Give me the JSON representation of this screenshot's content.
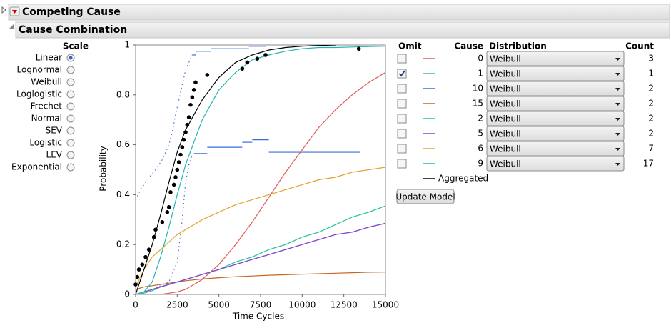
{
  "header": {
    "title": "Competing Cause",
    "subtitle": "Cause Combination"
  },
  "scale": {
    "title": "Scale",
    "options": [
      "Linear",
      "Lognormal",
      "Weibull",
      "Loglogistic",
      "Frechet",
      "Normal",
      "SEV",
      "Logistic",
      "LEV",
      "Exponential"
    ],
    "selected": 0
  },
  "cause_table": {
    "headers": [
      "Omit",
      "Cause",
      "Distribution",
      "Count"
    ],
    "omit": [
      false,
      true,
      false,
      false,
      false,
      false,
      false,
      false
    ],
    "distribution": [
      "Weibull",
      "Weibull",
      "Weibull",
      "Weibull",
      "Weibull",
      "Weibull",
      "Weibull",
      "Weibull"
    ],
    "count": [
      3,
      1,
      2,
      2,
      2,
      2,
      7,
      17
    ]
  },
  "update_button": "Update Model",
  "chart_data": {
    "type": "line",
    "xlabel": "Time Cycles",
    "ylabel": "Probability",
    "xlim": [
      0,
      15000
    ],
    "ylim": [
      0,
      1
    ],
    "xticks": [
      0,
      2500,
      5000,
      7500,
      10000,
      12500,
      15000
    ],
    "yticks": [
      0,
      0.2,
      0.4,
      0.6,
      0.8,
      1
    ],
    "x": [
      0,
      500,
      1000,
      1500,
      2000,
      2500,
      3000,
      4000,
      5000,
      6000,
      7000,
      8000,
      9000,
      10000,
      11000,
      12000,
      13000,
      14000,
      15000
    ],
    "series": [
      {
        "name": "0",
        "color": "#e05a55",
        "values": [
          0,
          0,
          0,
          0,
          0.005,
          0.01,
          0.02,
          0.06,
          0.12,
          0.2,
          0.29,
          0.39,
          0.49,
          0.58,
          0.67,
          0.74,
          0.8,
          0.85,
          0.89
        ]
      },
      {
        "name": "1",
        "color": "#2ecc71",
        "values": [
          null,
          null,
          null,
          null,
          null,
          null,
          null,
          null,
          null,
          null,
          null,
          null,
          null,
          null,
          null,
          null,
          null,
          null,
          null
        ]
      },
      {
        "name": "10",
        "color": "#3a6fd8",
        "values": [
          0,
          0.01,
          0.02,
          0.03,
          0.04,
          0.05,
          0.06,
          0.08,
          0.1,
          0.12,
          0.14,
          0.16,
          0.18,
          0.2,
          0.22,
          0.24,
          0.25,
          0.27,
          0.285
        ]
      },
      {
        "name": "15",
        "color": "#c8651e",
        "values": [
          0.02,
          0.03,
          0.035,
          0.04,
          0.045,
          0.05,
          0.055,
          0.062,
          0.067,
          0.071,
          0.074,
          0.077,
          0.079,
          0.081,
          0.083,
          0.085,
          0.087,
          0.089,
          0.09
        ]
      },
      {
        "name": "2",
        "color": "#1fc29a",
        "values": [
          0,
          0.005,
          0.015,
          0.03,
          0.04,
          0.05,
          0.06,
          0.08,
          0.1,
          0.13,
          0.15,
          0.18,
          0.2,
          0.23,
          0.25,
          0.28,
          0.31,
          0.33,
          0.355
        ]
      },
      {
        "name": "5",
        "color": "#8a3fd0",
        "values": [
          0,
          0.01,
          0.02,
          0.03,
          0.04,
          0.05,
          0.06,
          0.08,
          0.1,
          0.12,
          0.14,
          0.16,
          0.18,
          0.2,
          0.22,
          0.24,
          0.25,
          0.27,
          0.285
        ]
      },
      {
        "name": "6",
        "color": "#e0a42a",
        "values": [
          0.03,
          0.1,
          0.15,
          0.18,
          0.21,
          0.24,
          0.26,
          0.3,
          0.33,
          0.36,
          0.38,
          0.4,
          0.42,
          0.44,
          0.46,
          0.47,
          0.49,
          0.5,
          0.51
        ]
      },
      {
        "name": "9",
        "color": "#22b5b0",
        "values": [
          0,
          0.01,
          0.05,
          0.15,
          0.27,
          0.4,
          0.52,
          0.7,
          0.82,
          0.89,
          0.94,
          0.96,
          0.975,
          0.985,
          0.99,
          0.99,
          0.992,
          0.994,
          0.995
        ]
      },
      {
        "name": "Aggregated",
        "color": "#000000",
        "values": [
          0,
          0.1,
          0.2,
          0.32,
          0.45,
          0.57,
          0.66,
          0.78,
          0.87,
          0.93,
          0.96,
          0.98,
          0.99,
          0.995,
          0.998,
          1,
          null,
          null,
          null
        ]
      }
    ],
    "points": {
      "color": "#000000",
      "x": [
        0,
        100,
        200,
        400,
        600,
        800,
        1100,
        1200,
        1600,
        1900,
        2000,
        2100,
        2300,
        2400,
        2500,
        2600,
        2700,
        2800,
        2900,
        3000,
        3100,
        3200,
        3300,
        3400,
        3500,
        3600,
        4300,
        6400,
        6700,
        7300,
        7800,
        13400
      ],
      "y": [
        0.04,
        0.07,
        0.1,
        0.12,
        0.15,
        0.18,
        0.23,
        0.26,
        0.29,
        0.33,
        0.35,
        0.41,
        0.44,
        0.47,
        0.5,
        0.53,
        0.56,
        0.59,
        0.62,
        0.65,
        0.68,
        0.71,
        0.76,
        0.79,
        0.82,
        0.85,
        0.88,
        0.905,
        0.93,
        0.945,
        0.96,
        0.985
      ]
    },
    "bounds": {
      "color": "#3a6fd8",
      "steps": {
        "x_start": [
          3400,
          3600,
          4500,
          6800,
          3500,
          4300,
          6400,
          7000,
          8000
        ],
        "x_end": [
          3600,
          4500,
          6800,
          7800,
          4300,
          6400,
          7000,
          8000,
          13500
        ],
        "y": [
          0.96,
          0.975,
          0.985,
          0.995,
          0.565,
          0.59,
          0.61,
          0.62,
          0.57
        ]
      },
      "dotted": [
        {
          "x": [
            0,
            300,
            700,
            1200,
            1600,
            2000,
            2200,
            2400,
            2600,
            2800,
            3000,
            3200,
            3400
          ],
          "y": [
            0.38,
            0.42,
            0.46,
            0.5,
            0.54,
            0.6,
            0.65,
            0.72,
            0.78,
            0.84,
            0.9,
            0.93,
            0.96
          ]
        },
        {
          "x": [
            1000,
            2000,
            2500,
            2800,
            3000,
            3200,
            3400
          ],
          "y": [
            0.02,
            0.05,
            0.13,
            0.3,
            0.45,
            0.52,
            0.56
          ]
        }
      ]
    }
  }
}
